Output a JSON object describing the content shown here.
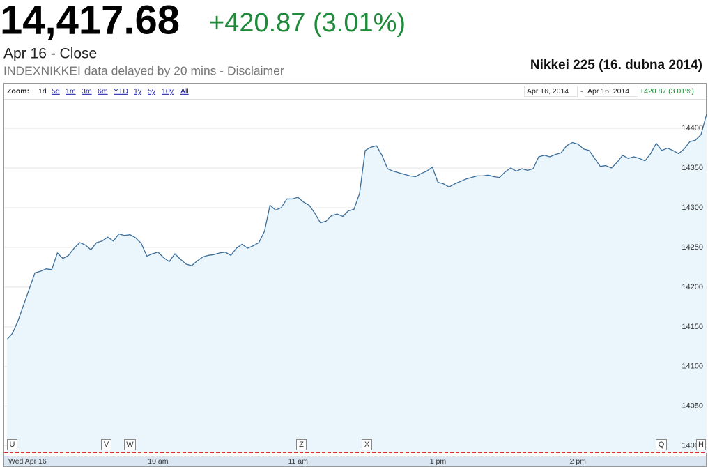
{
  "header": {
    "price": "14,417.68",
    "change": "+420.87 (3.01%)",
    "status": "Apr 16 - Close",
    "source": "INDEXNIKKEI data delayed by 20 mins - Disclaimer",
    "caption": "Nikkei 225 (16. dubna 2014)"
  },
  "toolbar": {
    "zoom_label": "Zoom:",
    "zoom_options": [
      "1d",
      "5d",
      "1m",
      "3m",
      "6m",
      "YTD",
      "1y",
      "5y",
      "10y",
      "All"
    ],
    "range_start": "Apr 16, 2014",
    "range_sep": "-",
    "range_end": "Apr 16, 2014",
    "range_change": "+420.87 (3.01%)"
  },
  "flags": [
    "U",
    "V",
    "W",
    "Z",
    "X",
    "Q",
    "H"
  ],
  "chart_data": {
    "type": "line",
    "color": "#3c6e9a",
    "fill": "#eaf5fc",
    "grid": true,
    "ylim": [
      13991,
      14436
    ],
    "yticks": [
      14000,
      14050,
      14100,
      14150,
      14200,
      14250,
      14300,
      14350,
      14400
    ],
    "categories": [
      "Wed Apr 16",
      null,
      null,
      null,
      null,
      null,
      null,
      null,
      null,
      null,
      null,
      null,
      null,
      null,
      null,
      null,
      null,
      null,
      null,
      null,
      null,
      null,
      null,
      null,
      null,
      null,
      null,
      "10 am",
      null,
      null,
      null,
      null,
      null,
      null,
      null,
      null,
      null,
      null,
      null,
      null,
      null,
      null,
      null,
      null,
      null,
      null,
      null,
      null,
      null,
      null,
      null,
      null,
      "11 am",
      null,
      null,
      null,
      null,
      null,
      null,
      null,
      null,
      null,
      null,
      null,
      null,
      null,
      null,
      null,
      null,
      null,
      null,
      null,
      null,
      null,
      null,
      null,
      null,
      "1 pm",
      null,
      null,
      null,
      null,
      null,
      null,
      null,
      null,
      null,
      null,
      null,
      null,
      null,
      null,
      null,
      null,
      null,
      null,
      null,
      null,
      null,
      null,
      null,
      null,
      "2 pm",
      null,
      null,
      null,
      null,
      null,
      null,
      null,
      null,
      null,
      null,
      null,
      null,
      null,
      null,
      null,
      null,
      null,
      null,
      null,
      null,
      null,
      null,
      null
    ],
    "values": [
      14134,
      14142,
      14158,
      14178,
      14198,
      14218,
      14220,
      14223,
      14222,
      14243,
      14236,
      14240,
      14249,
      14256,
      14253,
      14247,
      14256,
      14258,
      14263,
      14258,
      14267,
      14265,
      14266,
      14262,
      14255,
      14239,
      14242,
      14244,
      14237,
      14232,
      14242,
      14235,
      14229,
      14227,
      14233,
      14238,
      14240,
      14241,
      14243,
      14244,
      14240,
      14249,
      14254,
      14249,
      14252,
      14256,
      14270,
      14303,
      14297,
      14300,
      14311,
      14311,
      14313,
      14307,
      14303,
      14293,
      14281,
      14283,
      14290,
      14292,
      14289,
      14296,
      14298,
      14318,
      14372,
      14376,
      14378,
      14366,
      14349,
      14346,
      14344,
      14342,
      14340,
      14339,
      14343,
      14346,
      14351,
      14332,
      14330,
      14326,
      14330,
      14333,
      14336,
      14338,
      14340,
      14340,
      14341,
      14339,
      14338,
      14345,
      14350,
      14346,
      14349,
      14347,
      14349,
      14364,
      14366,
      14364,
      14367,
      14369,
      14378,
      14382,
      14380,
      14374,
      14372,
      14362,
      14352,
      14353,
      14350,
      14357,
      14366,
      14362,
      14364,
      14362,
      14359,
      14368,
      14381,
      14372,
      14375,
      14372,
      14368,
      14374,
      14383,
      14385,
      14392,
      14417.68
    ]
  }
}
